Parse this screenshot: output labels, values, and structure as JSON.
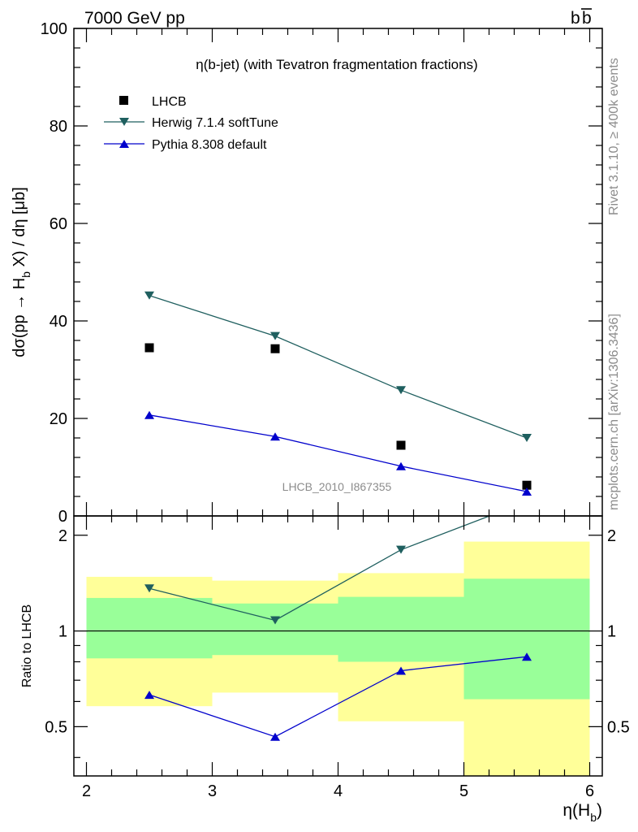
{
  "header": {
    "left": "7000 GeV pp",
    "right_main": "b",
    "right_bar": "b"
  },
  "side_labels": {
    "rivet": "Rivet 3.1.10, ≥ 400k events",
    "mcplots": "mcplots.cern.ch [arXiv:1306.3436]"
  },
  "watermark": "LHCB_2010_I867355",
  "chart_data": [
    {
      "type": "scatter",
      "title": "η(b-jet) (with Tevatron fragmentation fractions)",
      "ylabel": {
        "a": "dσ(pp → H",
        "b": "b",
        "c": " X) / dη [μb]"
      },
      "xlim": [
        1.9,
        6.1
      ],
      "ylim": [
        0,
        100
      ],
      "yticks": [
        0,
        20,
        40,
        60,
        80,
        100
      ],
      "legend_position": "top-left",
      "series": [
        {
          "name": "LHCB",
          "marker": "square",
          "color": "#000000",
          "x": [
            2.5,
            3.5,
            4.5,
            5.5
          ],
          "y": [
            34.5,
            34.3,
            14.5,
            6.3
          ]
        },
        {
          "name": "Herwig 7.1.4 softTune",
          "marker": "triangle-down",
          "color": "#1f5f5f",
          "x": [
            2.5,
            3.5,
            4.5,
            5.5
          ],
          "y": [
            45.2,
            36.9,
            25.8,
            16.0
          ]
        },
        {
          "name": "Pythia 8.308 default",
          "marker": "triangle-up",
          "color": "#0000cc",
          "x": [
            2.5,
            3.5,
            4.5,
            5.5
          ],
          "y": [
            20.7,
            16.3,
            10.2,
            5.0
          ]
        }
      ]
    },
    {
      "type": "line",
      "ylabel": "Ratio to LHCB",
      "xlabel": {
        "a": "η(H",
        "b": "b",
        "c": ")"
      },
      "xlim": [
        1.9,
        6.1
      ],
      "ylim": [
        0.35,
        2.3
      ],
      "yticks": [
        0.5,
        1,
        2
      ],
      "yticklabels": [
        "0.5",
        "1",
        "2"
      ],
      "xticks": [
        2,
        3,
        4,
        5,
        6
      ],
      "xticklabels": [
        "2",
        "3",
        "4",
        "5",
        "6"
      ],
      "scale": "log",
      "reference": 1,
      "bands": [
        {
          "x0": 2,
          "x1": 3,
          "yellow": [
            0.58,
            1.48
          ],
          "green": [
            0.82,
            1.27
          ]
        },
        {
          "x0": 3,
          "x1": 4,
          "yellow": [
            0.64,
            1.44
          ],
          "green": [
            0.84,
            1.22
          ]
        },
        {
          "x0": 4,
          "x1": 5,
          "yellow": [
            0.52,
            1.52
          ],
          "green": [
            0.8,
            1.28
          ]
        },
        {
          "x0": 5,
          "x1": 6,
          "yellow": [
            0.35,
            1.91
          ],
          "green": [
            0.61,
            1.46
          ]
        }
      ],
      "band_colors": {
        "yellow": "#ffff99",
        "green": "#99ff99"
      },
      "series": [
        {
          "name": "Herwig 7.1.4 softTune",
          "color": "#1f5f5f",
          "marker": "triangle-down",
          "x": [
            2.5,
            3.5,
            4.5,
            5.5
          ],
          "y": [
            1.36,
            1.08,
            1.8,
            2.55
          ]
        },
        {
          "name": "Pythia 8.308 default",
          "color": "#0000cc",
          "marker": "triangle-up",
          "x": [
            2.5,
            3.5,
            4.5,
            5.5
          ],
          "y": [
            0.63,
            0.465,
            0.75,
            0.83
          ]
        }
      ]
    }
  ]
}
